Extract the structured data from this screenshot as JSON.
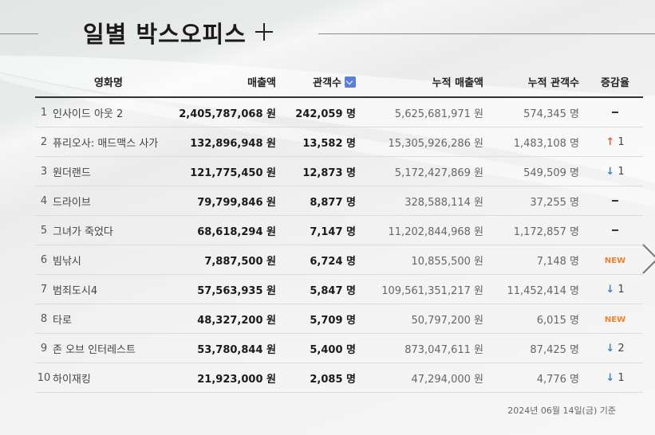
{
  "header": {
    "title": "일별 박스오피스"
  },
  "table": {
    "columns": {
      "title": "영화명",
      "sales": "매출액",
      "audience": "관객수",
      "cum_sales": "누적 매출액",
      "cum_audience": "누적 관객수",
      "change": "증감율"
    },
    "rows": [
      {
        "rank": "1",
        "title": "인사이드 아웃 2",
        "sales": "2,405,787,068 원",
        "audience": "242,059 명",
        "cum_sales": "5,625,681,971 원",
        "cum_audience": "574,345 명",
        "change_type": "none",
        "change_value": ""
      },
      {
        "rank": "2",
        "title": "퓨리오사: 매드맥스 사가",
        "sales": "132,896,948 원",
        "audience": "13,582 명",
        "cum_sales": "15,305,926,286 원",
        "cum_audience": "1,483,108 명",
        "change_type": "up",
        "change_value": "1"
      },
      {
        "rank": "3",
        "title": "원더랜드",
        "sales": "121,775,450 원",
        "audience": "12,873 명",
        "cum_sales": "5,172,427,869 원",
        "cum_audience": "549,509 명",
        "change_type": "down",
        "change_value": "1"
      },
      {
        "rank": "4",
        "title": "드라이브",
        "sales": "79,799,846 원",
        "audience": "8,877 명",
        "cum_sales": "328,588,114 원",
        "cum_audience": "37,255 명",
        "change_type": "none",
        "change_value": ""
      },
      {
        "rank": "5",
        "title": "그녀가 죽었다",
        "sales": "68,618,294 원",
        "audience": "7,147 명",
        "cum_sales": "11,202,844,968 원",
        "cum_audience": "1,172,857 명",
        "change_type": "none",
        "change_value": ""
      },
      {
        "rank": "6",
        "title": "빔낚시",
        "sales": "7,887,500 원",
        "audience": "6,724 명",
        "cum_sales": "10,855,500 원",
        "cum_audience": "7,148 명",
        "change_type": "new",
        "change_value": "NEW"
      },
      {
        "rank": "7",
        "title": "범죄도시4",
        "sales": "57,563,935 원",
        "audience": "5,847 명",
        "cum_sales": "109,561,351,217 원",
        "cum_audience": "11,452,414 명",
        "change_type": "down",
        "change_value": "1"
      },
      {
        "rank": "8",
        "title": "타로",
        "sales": "48,327,200 원",
        "audience": "5,709 명",
        "cum_sales": "50,797,200 원",
        "cum_audience": "6,015 명",
        "change_type": "new",
        "change_value": "NEW"
      },
      {
        "rank": "9",
        "title": "존 오브 인터레스트",
        "sales": "53,780,844 원",
        "audience": "5,400 명",
        "cum_sales": "873,047,611 원",
        "cum_audience": "87,425 명",
        "change_type": "down",
        "change_value": "2"
      },
      {
        "rank": "10",
        "title": "하이재킹",
        "sales": "21,923,000 원",
        "audience": "2,085 명",
        "cum_sales": "47,294,000 원",
        "cum_audience": "4,776 명",
        "change_type": "down",
        "change_value": "1"
      }
    ]
  },
  "footer": {
    "date_text": "2024년 06월 14일(금) 기준"
  },
  "icons": {
    "add": "plus-icon",
    "sort": "sort-down-icon",
    "next": "chevron-right-icon",
    "up": "arrow-up-icon",
    "down": "arrow-down-icon"
  },
  "colors": {
    "up": "#e2574c",
    "down": "#4a7fd6",
    "new": "#f0812c",
    "sort": "#5b7fd6"
  }
}
